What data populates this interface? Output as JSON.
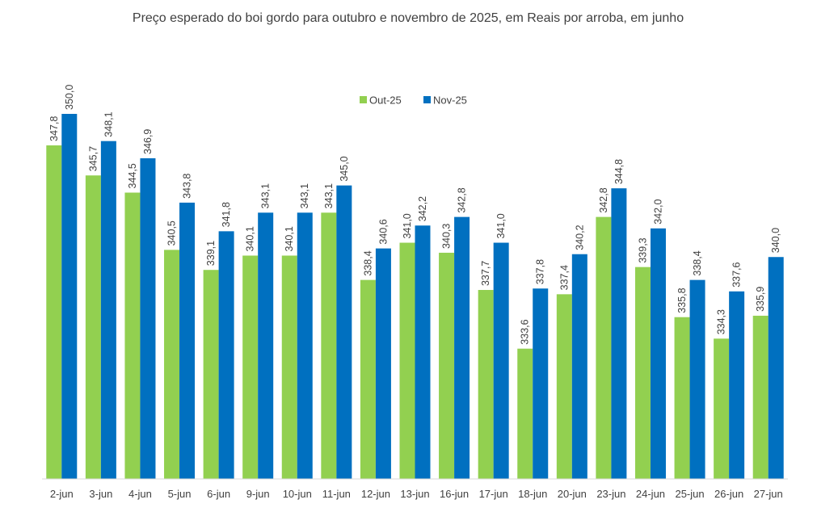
{
  "chart_data": {
    "type": "bar",
    "title": "Preço esperado do boi gordo para outubro e novembro de 2025, em Reais por arroba, em junho",
    "xlabel": "",
    "ylabel": "",
    "categories": [
      "2-jun",
      "3-jun",
      "4-jun",
      "5-jun",
      "6-jun",
      "9-jun",
      "10-jun",
      "11-jun",
      "12-jun",
      "13-jun",
      "16-jun",
      "17-jun",
      "18-jun",
      "20-jun",
      "23-jun",
      "24-jun",
      "25-jun",
      "26-jun",
      "27-jun"
    ],
    "series": [
      {
        "name": "Out-25",
        "color": "#92d050",
        "values": [
          347.8,
          345.7,
          344.5,
          340.5,
          339.1,
          340.1,
          340.1,
          343.1,
          338.4,
          341.0,
          340.3,
          337.7,
          333.6,
          337.4,
          342.8,
          339.3,
          335.8,
          334.3,
          335.9
        ],
        "labels": [
          "347,8",
          "345,7",
          "344,5",
          "340,5",
          "339,1",
          "340,1",
          "340,1",
          "343,1",
          "338,4",
          "341,0",
          "340,3",
          "337,7",
          "333,6",
          "337,4",
          "342,8",
          "339,3",
          "335,8",
          "334,3",
          "335,9"
        ]
      },
      {
        "name": "Nov-25",
        "color": "#0070c0",
        "values": [
          350.0,
          348.1,
          346.9,
          343.8,
          341.8,
          343.1,
          343.1,
          345.0,
          340.6,
          342.2,
          342.8,
          341.0,
          337.8,
          340.2,
          344.8,
          342.0,
          338.4,
          337.6,
          340.0
        ],
        "labels": [
          "350,0",
          "348,1",
          "346,9",
          "343,8",
          "341,8",
          "343,1",
          "343,1",
          "345,0",
          "340,6",
          "342,2",
          "342,8",
          "341,0",
          "337,8",
          "340,2",
          "344,8",
          "342,0",
          "338,4",
          "337,6",
          "340,0"
        ]
      }
    ],
    "ylim": [
      324.5,
      350.0
    ],
    "grid": false,
    "axis_visible": false,
    "legend_position": "top-center",
    "data_label_orientation": "vertical"
  }
}
